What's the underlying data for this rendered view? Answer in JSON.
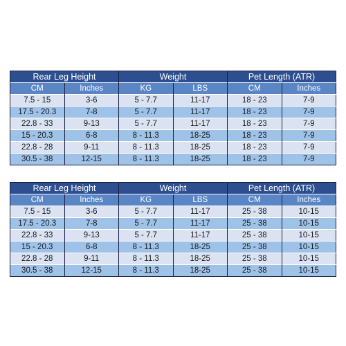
{
  "tables": [
    {
      "groups": [
        "Rear Leg Height",
        "Weight",
        "Pet Length (ATR)"
      ],
      "subheaders": [
        "CM",
        "Inches",
        "KG",
        "LBS",
        "CM",
        "Inches"
      ],
      "rows": [
        [
          "7.5 - 15",
          "3-6",
          "5 - 7.7",
          "11-17",
          "18 - 23",
          "7-9"
        ],
        [
          "17.5 - 20.3",
          "7-8",
          "5 - 7.7",
          "11-17",
          "18 - 23",
          "7-9"
        ],
        [
          "22.8 - 33",
          "9-13",
          "5 - 7.7",
          "11-17",
          "18 - 23",
          "7-9"
        ],
        [
          "15 - 20.3",
          "6-8",
          "8 - 11.3",
          "18-25",
          "18 - 23",
          "7-9"
        ],
        [
          "22.8 - 28",
          "9-11",
          "8 - 11.3",
          "18-25",
          "18 - 23",
          "7-9"
        ],
        [
          "30.5 - 38",
          "12-15",
          "8 - 11.3",
          "18-25",
          "18 - 23",
          "7-9"
        ]
      ]
    },
    {
      "groups": [
        "Rear Leg Height",
        "Weight",
        "Pet Length (ATR)"
      ],
      "subheaders": [
        "CM",
        "Inches",
        "KG",
        "LBS",
        "CM",
        "Inches"
      ],
      "rows": [
        [
          "7.5 - 15",
          "3-6",
          "5 - 7.7",
          "11-17",
          "25 - 38",
          "10-15"
        ],
        [
          "17.5 - 20.3",
          "7-8",
          "5 - 7.7",
          "11-17",
          "25 - 38",
          "10-15"
        ],
        [
          "22.8 - 33",
          "9-13",
          "5 - 7.7",
          "11-17",
          "25 - 38",
          "10-15"
        ],
        [
          "15 - 20.3",
          "6-8",
          "8 - 11.3",
          "18-25",
          "25 - 38",
          "10-15"
        ],
        [
          "22.8 - 28",
          "9-11",
          "8 - 11.3",
          "18-25",
          "25 - 38",
          "10-15"
        ],
        [
          "30.5 - 38",
          "12-15",
          "8 - 11.3",
          "18-25",
          "25 - 38",
          "10-15"
        ]
      ]
    }
  ],
  "colors": {
    "group_header": "#2e4f8f",
    "sub_header": "#5b86c6",
    "row_light": "#dbe3f3",
    "row_dark": "#9fc2e8",
    "border": "#1a1f3d"
  }
}
